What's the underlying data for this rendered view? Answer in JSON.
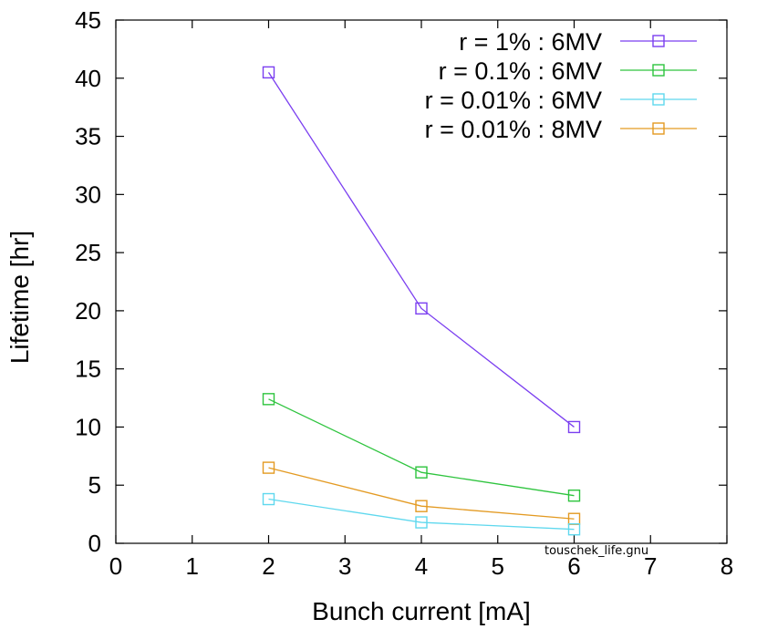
{
  "chart_data": {
    "type": "line",
    "xlabel": "Bunch current [mA]",
    "ylabel": "Lifetime [hr]",
    "xlim": [
      0,
      8
    ],
    "ylim": [
      0,
      45
    ],
    "xticks": [
      0,
      1,
      2,
      3,
      4,
      5,
      6,
      7,
      8
    ],
    "yticks": [
      0,
      5,
      10,
      15,
      20,
      25,
      30,
      35,
      40,
      45
    ],
    "grid": false,
    "legend_position": "top-right",
    "marker": "open-square",
    "series": [
      {
        "name": "r = 1% : 6MV",
        "color": "#7b3ff0",
        "x": [
          2,
          4,
          6
        ],
        "y": [
          40.5,
          20.2,
          10.0
        ]
      },
      {
        "name": "r = 0.1% : 6MV",
        "color": "#2ec43e",
        "x": [
          2,
          4,
          6
        ],
        "y": [
          12.4,
          6.1,
          4.1
        ]
      },
      {
        "name": "r = 0.01% : 6MV",
        "color": "#5fd8ee",
        "x": [
          2,
          4,
          6
        ],
        "y": [
          3.8,
          1.8,
          1.2
        ]
      },
      {
        "name": "r = 0.01% : 8MV",
        "color": "#e39a22",
        "x": [
          2,
          4,
          6
        ],
        "y": [
          6.5,
          3.2,
          2.1
        ]
      }
    ]
  },
  "footer": {
    "source_file": "touschek_life.gnu"
  }
}
